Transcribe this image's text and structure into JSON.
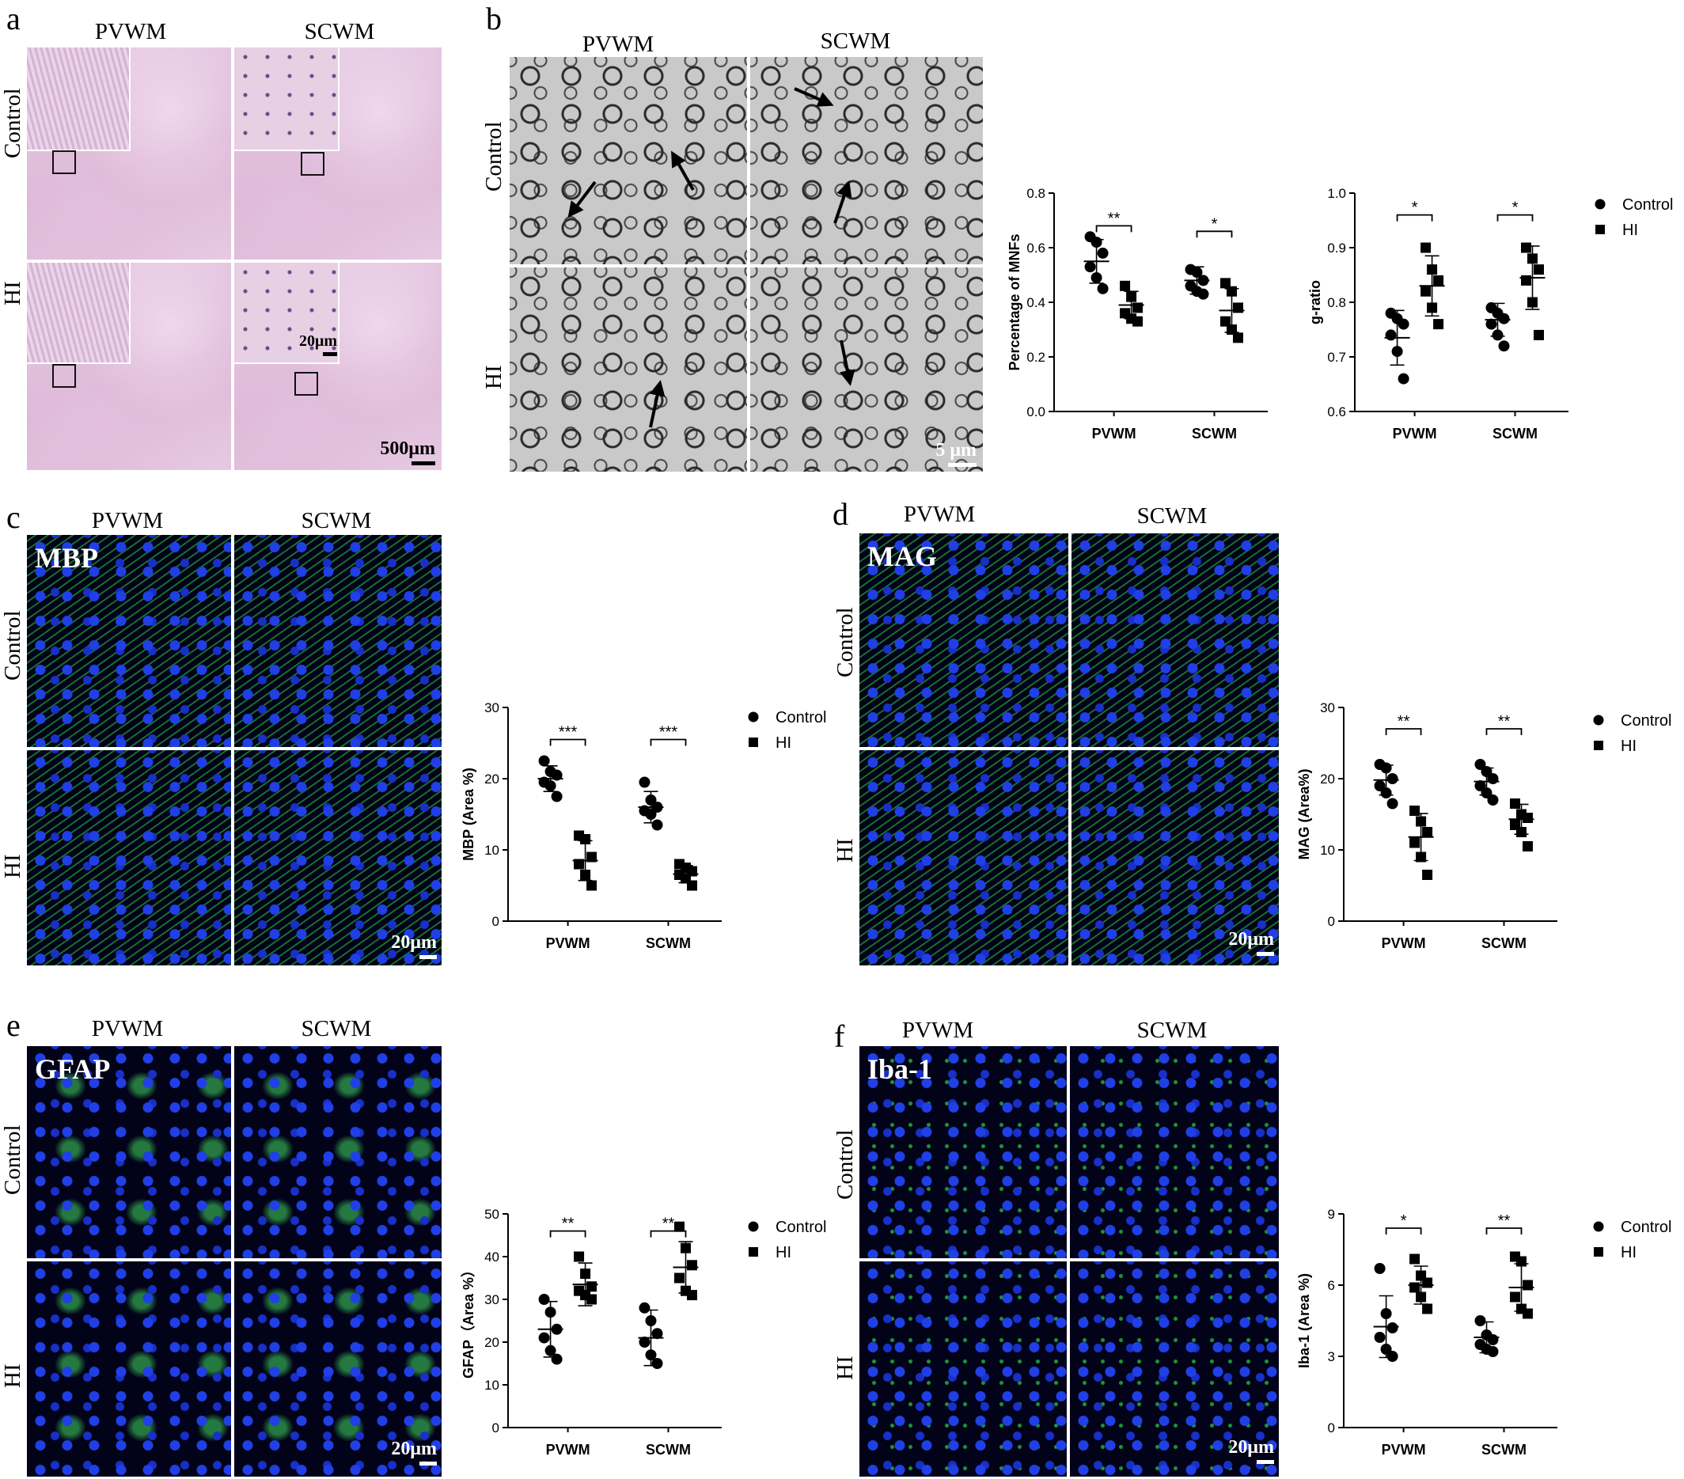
{
  "panels": {
    "a": {
      "letter": "a",
      "cols": [
        "PVWM",
        "SCWM"
      ],
      "rows": [
        "Control",
        "HI"
      ],
      "scale_big": "500μm",
      "scale_small": "20μm"
    },
    "b": {
      "letter": "b",
      "cols": [
        "PVWM",
        "SCWM"
      ],
      "rows": [
        "Control",
        "HI"
      ],
      "scale": "5 μm"
    },
    "c": {
      "letter": "c",
      "cols": [
        "PVWM",
        "SCWM"
      ],
      "rows": [
        "Control",
        "HI"
      ],
      "stain": "MBP",
      "scale": "20μm"
    },
    "d": {
      "letter": "d",
      "cols": [
        "PVWM",
        "SCWM"
      ],
      "rows": [
        "Control",
        "HI"
      ],
      "stain": "MAG",
      "scale": "20μm"
    },
    "e": {
      "letter": "e",
      "cols": [
        "PVWM",
        "SCWM"
      ],
      "rows": [
        "Control",
        "HI"
      ],
      "stain": "GFAP",
      "scale": "20μm"
    },
    "f": {
      "letter": "f",
      "cols": [
        "PVWM",
        "SCWM"
      ],
      "rows": [
        "Control",
        "HI"
      ],
      "stain": "Iba-1",
      "scale": "20μm"
    }
  },
  "colors": {
    "em_gray": "#c9c9c9",
    "he_pink": "#dcb7d6",
    "fluor_green": "#28c83c",
    "fluor_blue": "#2040e6",
    "point": "#000000"
  },
  "chart_data": [
    {
      "id": "mnf",
      "type": "scatter",
      "ylabel": "Percentage of MNFs",
      "ylim": [
        0,
        0.8
      ],
      "yticks": [
        0.0,
        0.2,
        0.4,
        0.6,
        0.8
      ],
      "yticklabels": [
        "0.0",
        "0.2",
        "0.4",
        "0.6",
        "0.8"
      ],
      "categories": [
        "PVWM",
        "SCWM"
      ],
      "series": [
        {
          "name": "Control",
          "marker": "circle",
          "groups": [
            {
              "points": [
                0.64,
                0.62,
                0.58,
                0.53,
                0.49,
                0.45
              ],
              "mean": 0.55,
              "sd": 0.08
            },
            {
              "points": [
                0.52,
                0.51,
                0.48,
                0.46,
                0.44,
                0.43
              ],
              "mean": 0.48,
              "sd": 0.05
            }
          ]
        },
        {
          "name": "HI",
          "marker": "square",
          "groups": [
            {
              "points": [
                0.46,
                0.42,
                0.38,
                0.36,
                0.34,
                0.33
              ],
              "mean": 0.39,
              "sd": 0.05
            },
            {
              "points": [
                0.47,
                0.44,
                0.38,
                0.33,
                0.3,
                0.27
              ],
              "mean": 0.37,
              "sd": 0.08
            }
          ]
        }
      ],
      "significance": [
        {
          "label": "**",
          "y": 0.68,
          "cat": "PVWM"
        },
        {
          "label": "*",
          "y": 0.66,
          "cat": "SCWM"
        }
      ],
      "legend": "none"
    },
    {
      "id": "gratio",
      "type": "scatter",
      "ylabel": "g-ratio",
      "ylim": [
        0.6,
        1.0
      ],
      "yticks": [
        0.6,
        0.7,
        0.8,
        0.9,
        1.0
      ],
      "yticklabels": [
        "0.6",
        "0.7",
        "0.8",
        "0.9",
        "1.0"
      ],
      "categories": [
        "PVWM",
        "SCWM"
      ],
      "series": [
        {
          "name": "Control",
          "marker": "circle",
          "groups": [
            {
              "points": [
                0.78,
                0.77,
                0.76,
                0.74,
                0.71,
                0.66
              ],
              "mean": 0.735,
              "sd": 0.05
            },
            {
              "points": [
                0.79,
                0.78,
                0.77,
                0.76,
                0.74,
                0.72
              ],
              "mean": 0.768,
              "sd": 0.03
            }
          ]
        },
        {
          "name": "HI",
          "marker": "square",
          "groups": [
            {
              "points": [
                0.9,
                0.86,
                0.84,
                0.82,
                0.79,
                0.76
              ],
              "mean": 0.83,
              "sd": 0.055
            },
            {
              "points": [
                0.9,
                0.88,
                0.86,
                0.84,
                0.8,
                0.74
              ],
              "mean": 0.845,
              "sd": 0.058
            }
          ]
        }
      ],
      "significance": [
        {
          "label": "*",
          "y": 0.96,
          "cat": "PVWM"
        },
        {
          "label": "*",
          "y": 0.96,
          "cat": "SCWM"
        }
      ],
      "legend": "top-right"
    },
    {
      "id": "mbp",
      "type": "scatter",
      "ylabel": "MBP (Area %)",
      "ylim": [
        0,
        30
      ],
      "yticks": [
        0,
        10,
        20,
        30
      ],
      "yticklabels": [
        "0",
        "10",
        "20",
        "30"
      ],
      "categories": [
        "PVWM",
        "SCWM"
      ],
      "series": [
        {
          "name": "Control",
          "marker": "circle",
          "groups": [
            {
              "points": [
                22.5,
                21,
                20.5,
                19.5,
                19,
                17.5
              ],
              "mean": 20,
              "sd": 1.8
            },
            {
              "points": [
                19.5,
                17,
                16,
                15.5,
                15,
                13.5
              ],
              "mean": 16,
              "sd": 2.2
            }
          ]
        },
        {
          "name": "HI",
          "marker": "square",
          "groups": [
            {
              "points": [
                12,
                11.5,
                9,
                8,
                6.5,
                5
              ],
              "mean": 8.5,
              "sd": 2.8
            },
            {
              "points": [
                8,
                7.5,
                7,
                6.5,
                6,
                5
              ],
              "mean": 6.6,
              "sd": 1.2
            }
          ]
        }
      ],
      "significance": [
        {
          "label": "***",
          "y": 25.5,
          "cat": "PVWM"
        },
        {
          "label": "***",
          "y": 25.5,
          "cat": "SCWM"
        }
      ],
      "legend": "top-right"
    },
    {
      "id": "mag",
      "type": "scatter",
      "ylabel": "MAG (Area%)",
      "ylim": [
        0,
        30
      ],
      "yticks": [
        0,
        10,
        20,
        30
      ],
      "yticklabels": [
        "0",
        "10",
        "20",
        "30"
      ],
      "categories": [
        "PVWM",
        "SCWM"
      ],
      "series": [
        {
          "name": "Control",
          "marker": "circle",
          "groups": [
            {
              "points": [
                22,
                21.5,
                20,
                19,
                18,
                16.5
              ],
              "mean": 19.8,
              "sd": 2.1
            },
            {
              "points": [
                22,
                21,
                20,
                19,
                18,
                17
              ],
              "mean": 19.6,
              "sd": 1.9
            }
          ]
        },
        {
          "name": "HI",
          "marker": "square",
          "groups": [
            {
              "points": [
                15.5,
                14,
                12.5,
                11,
                9,
                6.5
              ],
              "mean": 11.8,
              "sd": 3.3
            },
            {
              "points": [
                16.5,
                15,
                14.5,
                13.5,
                12.5,
                10.5
              ],
              "mean": 14.3,
              "sd": 2.1
            }
          ]
        }
      ],
      "significance": [
        {
          "label": "**",
          "y": 27,
          "cat": "PVWM"
        },
        {
          "label": "**",
          "y": 27,
          "cat": "SCWM"
        }
      ],
      "legend": "top-right"
    },
    {
      "id": "gfap",
      "type": "scatter",
      "ylabel": "GFAP（Area %）",
      "ylim": [
        0,
        50
      ],
      "yticks": [
        0,
        10,
        20,
        30,
        40,
        50
      ],
      "yticklabels": [
        "0",
        "10",
        "20",
        "30",
        "40",
        "50"
      ],
      "categories": [
        "PVWM",
        "SCWM"
      ],
      "series": [
        {
          "name": "Control",
          "marker": "circle",
          "groups": [
            {
              "points": [
                30,
                27,
                23,
                21,
                18,
                16
              ],
              "mean": 23,
              "sd": 6.5
            },
            {
              "points": [
                28,
                25,
                22,
                20,
                17,
                15
              ],
              "mean": 21,
              "sd": 6.5
            }
          ]
        },
        {
          "name": "HI",
          "marker": "square",
          "groups": [
            {
              "points": [
                40,
                36,
                33,
                32,
                31,
                30
              ],
              "mean": 33.5,
              "sd": 5
            },
            {
              "points": [
                47,
                42,
                38,
                35,
                32,
                31
              ],
              "mean": 37.5,
              "sd": 6
            }
          ]
        }
      ],
      "significance": [
        {
          "label": "**",
          "y": 46,
          "cat": "PVWM"
        },
        {
          "label": "**",
          "y": 46,
          "cat": "SCWM"
        }
      ],
      "legend": "top-right"
    },
    {
      "id": "iba1",
      "type": "scatter",
      "ylabel": "Iba-1 (Area %)",
      "ylim": [
        0,
        9
      ],
      "yticks": [
        0,
        3,
        6,
        9
      ],
      "yticklabels": [
        "0",
        "3",
        "6",
        "9"
      ],
      "categories": [
        "PVWM",
        "SCWM"
      ],
      "series": [
        {
          "name": "Control",
          "marker": "circle",
          "groups": [
            {
              "points": [
                6.7,
                4.8,
                4.2,
                3.8,
                3.3,
                3.0
              ],
              "mean": 4.25,
              "sd": 1.3
            },
            {
              "points": [
                4.5,
                3.9,
                3.7,
                3.5,
                3.3,
                3.2
              ],
              "mean": 3.8,
              "sd": 0.65
            }
          ]
        },
        {
          "name": "HI",
          "marker": "square",
          "groups": [
            {
              "points": [
                7.1,
                6.4,
                6.1,
                5.9,
                5.5,
                5.0
              ],
              "mean": 6.0,
              "sd": 0.8
            },
            {
              "points": [
                7.2,
                7.0,
                6.0,
                5.5,
                5.0,
                4.8
              ],
              "mean": 5.9,
              "sd": 1.0
            }
          ]
        }
      ],
      "significance": [
        {
          "label": "*",
          "y": 8.4,
          "cat": "PVWM"
        },
        {
          "label": "**",
          "y": 8.4,
          "cat": "SCWM"
        }
      ],
      "legend": "top-right"
    }
  ]
}
